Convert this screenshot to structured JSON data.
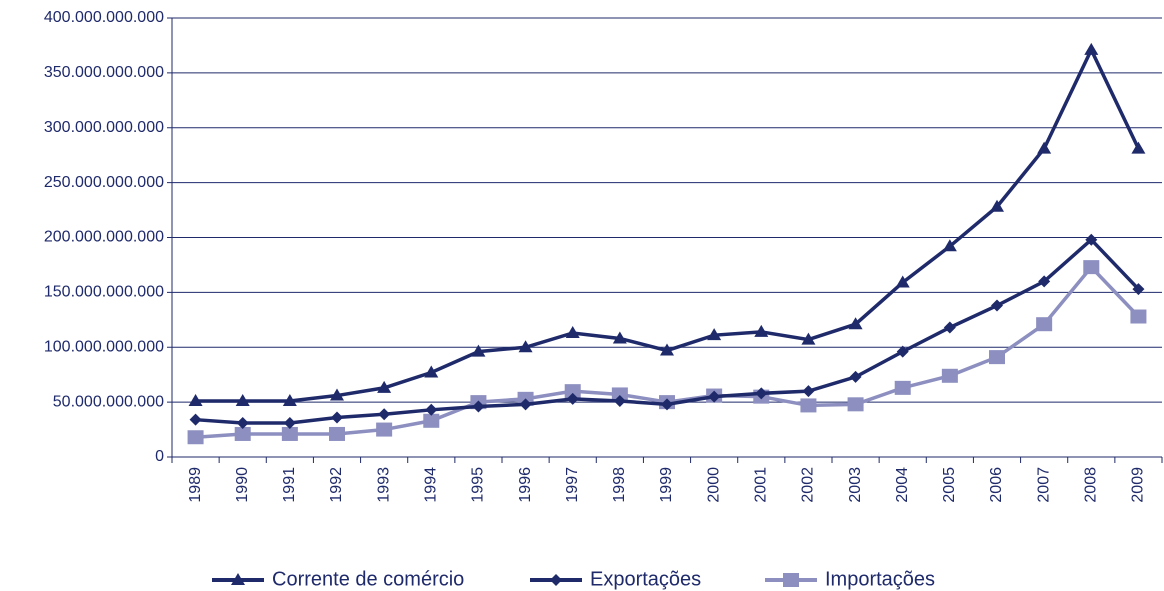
{
  "chart_data": {
    "type": "line",
    "categories": [
      "1989",
      "1990",
      "1991",
      "1992",
      "1993",
      "1994",
      "1995",
      "1996",
      "1997",
      "1998",
      "1999",
      "2000",
      "2001",
      "2002",
      "2003",
      "2004",
      "2005",
      "2006",
      "2007",
      "2008",
      "2009"
    ],
    "series": [
      {
        "name": "Corrente de comércio",
        "color": "#1f2a6b",
        "marker": "triangle",
        "values": [
          51000000000,
          51000000000,
          51000000000,
          56000000000,
          63000000000,
          77000000000,
          96000000000,
          100000000000,
          113000000000,
          108000000000,
          97000000000,
          111000000000,
          114000000000,
          107000000000,
          121000000000,
          159000000000,
          192000000000,
          228000000000,
          281000000000,
          371000000000,
          281000000000
        ]
      },
      {
        "name": "Exportações",
        "color": "#1f2a6b",
        "marker": "diamond",
        "values": [
          34000000000,
          31000000000,
          31000000000,
          36000000000,
          39000000000,
          43000000000,
          46000000000,
          48000000000,
          53000000000,
          51000000000,
          48000000000,
          55000000000,
          58000000000,
          60000000000,
          73000000000,
          96000000000,
          118000000000,
          138000000000,
          160000000000,
          198000000000,
          153000000000
        ]
      },
      {
        "name": "Importações",
        "color": "#8c8fbf",
        "marker": "square",
        "values": [
          18000000000,
          21000000000,
          21000000000,
          21000000000,
          25000000000,
          33000000000,
          50000000000,
          53000000000,
          60000000000,
          57000000000,
          50000000000,
          56000000000,
          55000000000,
          47000000000,
          48000000000,
          63000000000,
          74000000000,
          91000000000,
          121000000000,
          173000000000,
          128000000000
        ]
      }
    ],
    "ylim": [
      0,
      400000000000
    ],
    "yticks": [
      0,
      {
        "value": 50000000000,
        "label": "50.000.000.000"
      },
      {
        "value": 100000000000,
        "label": "100.000.000.000"
      },
      {
        "value": 150000000000,
        "label": "150.000.000.000"
      },
      {
        "value": 200000000000,
        "label": "200.000.000.000"
      },
      {
        "value": 250000000000,
        "label": "250.000.000.000"
      },
      {
        "value": 300000000000,
        "label": "300.000.000.000"
      },
      {
        "value": 350000000000,
        "label": "350.000.000.000"
      },
      {
        "value": 400000000000,
        "label": "400.000.000.000"
      }
    ],
    "grid": true,
    "legend": "bottom"
  }
}
